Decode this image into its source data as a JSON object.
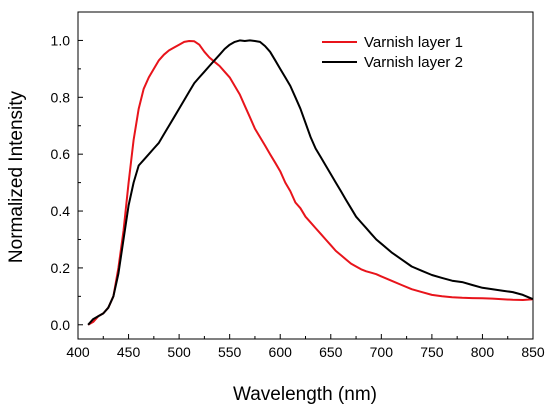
{
  "chart_data": {
    "type": "line",
    "xlabel": "Wavelength (nm)",
    "ylabel": "Normalized Intensity",
    "xlim": [
      400,
      850
    ],
    "ylim": [
      -0.05,
      1.1
    ],
    "x_ticks": [
      400,
      450,
      500,
      550,
      600,
      650,
      700,
      750,
      800,
      850
    ],
    "y_ticks": [
      0.0,
      0.2,
      0.4,
      0.6,
      0.8,
      1.0
    ],
    "x_tick_labels": [
      "400",
      "450",
      "500",
      "550",
      "600",
      "650",
      "700",
      "750",
      "800",
      "850"
    ],
    "y_tick_labels": [
      "0.0",
      "0.2",
      "0.4",
      "0.6",
      "0.8",
      "1.0"
    ],
    "grid": false,
    "legend_position": "top-right",
    "series": [
      {
        "name": "Varnish layer 1",
        "color": "#e8141b",
        "x": [
          410,
          415,
          420,
          425,
          430,
          435,
          440,
          445,
          450,
          455,
          460,
          465,
          470,
          475,
          480,
          485,
          490,
          495,
          500,
          505,
          510,
          515,
          520,
          525,
          530,
          535,
          540,
          545,
          550,
          555,
          560,
          565,
          570,
          575,
          580,
          585,
          590,
          595,
          600,
          605,
          610,
          615,
          620,
          625,
          630,
          635,
          640,
          645,
          650,
          655,
          660,
          665,
          670,
          675,
          680,
          685,
          690,
          695,
          700,
          710,
          720,
          730,
          740,
          750,
          760,
          770,
          780,
          790,
          800,
          810,
          820,
          830,
          840,
          850
        ],
        "y": [
          0.0,
          0.01,
          0.03,
          0.04,
          0.06,
          0.1,
          0.2,
          0.33,
          0.5,
          0.65,
          0.76,
          0.83,
          0.87,
          0.9,
          0.93,
          0.95,
          0.965,
          0.975,
          0.985,
          0.995,
          0.998,
          0.997,
          0.985,
          0.96,
          0.94,
          0.925,
          0.91,
          0.89,
          0.87,
          0.84,
          0.81,
          0.77,
          0.73,
          0.69,
          0.66,
          0.63,
          0.6,
          0.57,
          0.54,
          0.5,
          0.47,
          0.43,
          0.41,
          0.38,
          0.36,
          0.34,
          0.32,
          0.3,
          0.28,
          0.26,
          0.245,
          0.23,
          0.215,
          0.205,
          0.195,
          0.188,
          0.183,
          0.178,
          0.17,
          0.155,
          0.14,
          0.125,
          0.115,
          0.105,
          0.1,
          0.097,
          0.095,
          0.094,
          0.093,
          0.092,
          0.09,
          0.088,
          0.087,
          0.09
        ]
      },
      {
        "name": "Varnish layer 2",
        "color": "#000000",
        "x": [
          410,
          415,
          420,
          425,
          430,
          435,
          440,
          445,
          450,
          455,
          460,
          465,
          470,
          475,
          480,
          485,
          490,
          495,
          500,
          505,
          510,
          515,
          520,
          525,
          530,
          535,
          540,
          545,
          550,
          555,
          560,
          565,
          570,
          575,
          580,
          585,
          590,
          595,
          600,
          605,
          610,
          615,
          620,
          625,
          630,
          635,
          640,
          645,
          650,
          655,
          660,
          665,
          670,
          675,
          680,
          685,
          690,
          695,
          700,
          710,
          720,
          730,
          740,
          750,
          760,
          770,
          780,
          790,
          800,
          810,
          820,
          830,
          840,
          850
        ],
        "y": [
          0.0,
          0.02,
          0.03,
          0.04,
          0.06,
          0.1,
          0.18,
          0.3,
          0.42,
          0.5,
          0.56,
          0.58,
          0.6,
          0.62,
          0.64,
          0.67,
          0.7,
          0.73,
          0.76,
          0.79,
          0.82,
          0.85,
          0.87,
          0.89,
          0.91,
          0.93,
          0.95,
          0.97,
          0.985,
          0.995,
          1.0,
          0.998,
          1.0,
          0.998,
          0.995,
          0.98,
          0.96,
          0.93,
          0.9,
          0.87,
          0.84,
          0.8,
          0.76,
          0.71,
          0.66,
          0.62,
          0.59,
          0.56,
          0.53,
          0.5,
          0.47,
          0.44,
          0.41,
          0.38,
          0.36,
          0.34,
          0.32,
          0.3,
          0.285,
          0.255,
          0.23,
          0.205,
          0.19,
          0.175,
          0.165,
          0.155,
          0.15,
          0.14,
          0.13,
          0.125,
          0.12,
          0.115,
          0.105,
          0.09
        ]
      }
    ]
  }
}
